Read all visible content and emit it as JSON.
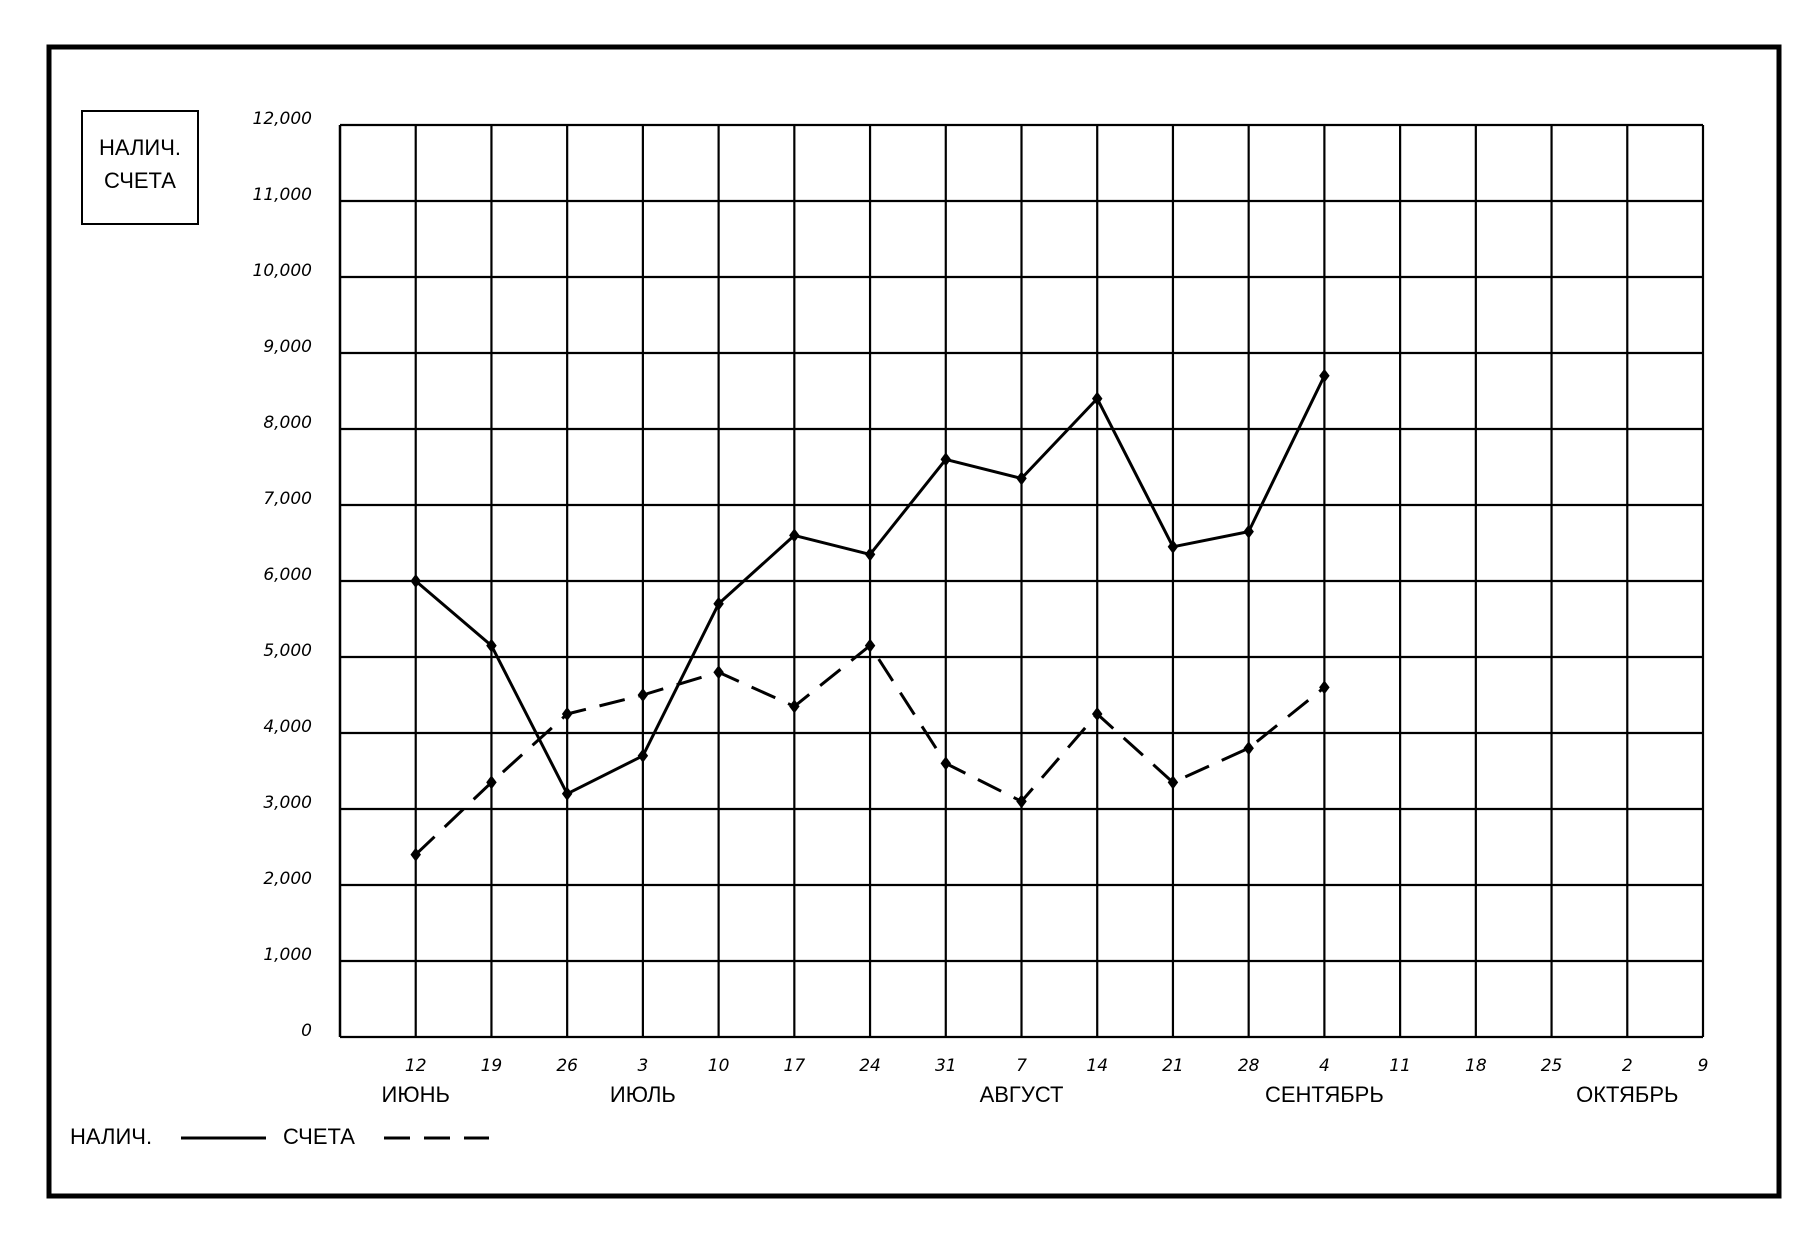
{
  "chart_data": {
    "type": "line",
    "title": [
      "НАЛИЧ.",
      "СЧЕТА"
    ],
    "categories": [
      "12",
      "19",
      "26",
      "3",
      "10",
      "17",
      "24",
      "31",
      "7",
      "14",
      "21",
      "28",
      "4",
      "11",
      "18",
      "25",
      "2",
      "9"
    ],
    "x_group_labels": [
      "ИЮНЬ",
      null,
      null,
      "ИЮЛЬ",
      null,
      null,
      null,
      null,
      "АВГУСТ",
      null,
      null,
      null,
      "СЕНТЯБРЬ",
      null,
      null,
      null,
      "ОКТЯБРЬ",
      null
    ],
    "series": [
      {
        "name": "НАЛИЧ.",
        "color": "#000000",
        "dash": false,
        "values": [
          6000,
          5150,
          3200,
          3700,
          5700,
          6600,
          6350,
          7600,
          7350,
          8400,
          6450,
          6650,
          8700,
          null,
          null,
          null,
          null,
          null
        ]
      },
      {
        "name": "СЧЕТА",
        "color": "#000000",
        "dash": true,
        "values": [
          2400,
          3350,
          4250,
          4500,
          4800,
          4350,
          5150,
          3600,
          3100,
          4250,
          3350,
          3800,
          4600,
          null,
          null,
          null,
          null,
          null
        ]
      }
    ],
    "ylim": [
      0,
      12000
    ],
    "yticks": [
      0,
      {
        "value": 1000,
        "label": "1,000"
      },
      {
        "value": 2000,
        "label": "2,000"
      },
      {
        "value": 3000,
        "label": "3,000"
      },
      {
        "value": 4000,
        "label": "4,000"
      },
      {
        "value": 5000,
        "label": "5,000"
      },
      {
        "value": 6000,
        "label": "6,000"
      },
      {
        "value": 7000,
        "label": "7,000"
      },
      {
        "value": 8000,
        "label": "8,000"
      },
      {
        "value": 9000,
        "label": "9,000"
      },
      {
        "value": 10000,
        "label": "10,000"
      },
      {
        "value": 11000,
        "label": "11,000"
      },
      {
        "value": 12000,
        "label": "12,000"
      }
    ],
    "grid": true
  }
}
